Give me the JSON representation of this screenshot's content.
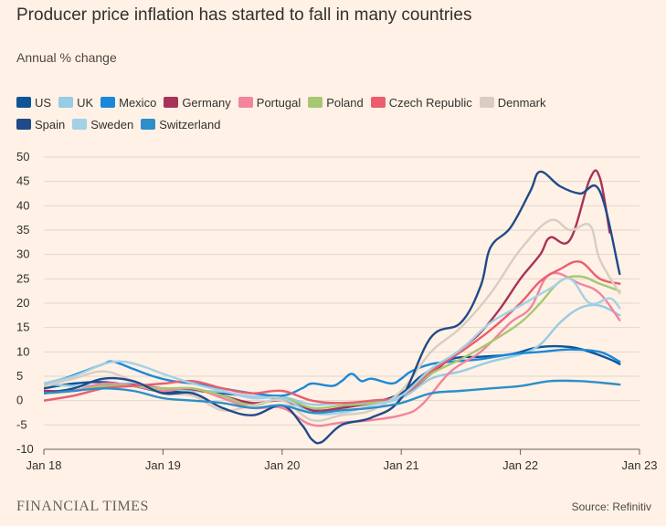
{
  "header": {
    "title": "Producer price inflation has started to fall in many countries",
    "subtitle": "Annual % change"
  },
  "footer": {
    "brand": "FINANCIAL TIMES",
    "source": "Source: Refinitiv"
  },
  "colors": {
    "background": "#fff1e5",
    "grid": "#e0d6cc",
    "axis": "#66605c",
    "text": "#33302e"
  },
  "chart_data": {
    "type": "line",
    "title": "Producer price inflation has started to fall in many countries",
    "ylabel": "Annual % change",
    "xlabel": "",
    "ylim": [
      -10,
      50
    ],
    "yticks": [
      "50",
      "45",
      "40",
      "35",
      "30",
      "25",
      "20",
      "15",
      "10",
      "5",
      "0",
      "-5",
      "-10"
    ],
    "xlim": [
      "2018-01",
      "2023-01"
    ],
    "xticks": [
      "Jan 18",
      "Jan 19",
      "Jan 20",
      "Jan 21",
      "Jan 22",
      "Jan 23"
    ],
    "grid": true,
    "legend_position": "top-left",
    "series": [
      {
        "name": "US",
        "color": "#0f5499",
        "points": [
          [
            "2018-01",
            2.5
          ],
          [
            "2018-04",
            3.5
          ],
          [
            "2018-07",
            3.8
          ],
          [
            "2018-10",
            3.0
          ],
          [
            "2019-01",
            1.8
          ],
          [
            "2019-04",
            2.0
          ],
          [
            "2019-07",
            1.5
          ],
          [
            "2019-10",
            0.8
          ],
          [
            "2020-01",
            0.5
          ],
          [
            "2020-03",
            -1.0
          ],
          [
            "2020-04",
            -2.0
          ],
          [
            "2020-05",
            -2.5
          ],
          [
            "2020-07",
            -1.5
          ],
          [
            "2020-10",
            -0.5
          ],
          [
            "2021-01",
            1.5
          ],
          [
            "2021-03",
            5.0
          ],
          [
            "2021-06",
            8.5
          ],
          [
            "2021-09",
            9.0
          ],
          [
            "2021-12",
            9.5
          ],
          [
            "2022-03",
            11.0
          ],
          [
            "2022-06",
            11.0
          ],
          [
            "2022-08",
            10.0
          ],
          [
            "2022-10",
            8.5
          ],
          [
            "2022-11",
            7.5
          ]
        ]
      },
      {
        "name": "UK",
        "color": "#96cce4",
        "points": [
          [
            "2018-01",
            3.5
          ],
          [
            "2018-04",
            3.0
          ],
          [
            "2018-07",
            3.2
          ],
          [
            "2018-10",
            3.5
          ],
          [
            "2019-01",
            2.5
          ],
          [
            "2019-04",
            2.0
          ],
          [
            "2019-07",
            1.8
          ],
          [
            "2019-10",
            0.8
          ],
          [
            "2020-01",
            0.8
          ],
          [
            "2020-04",
            -0.8
          ],
          [
            "2020-07",
            -0.5
          ],
          [
            "2020-10",
            -0.5
          ],
          [
            "2021-01",
            0.5
          ],
          [
            "2021-04",
            4.5
          ],
          [
            "2021-07",
            6.0
          ],
          [
            "2021-10",
            8.0
          ],
          [
            "2022-01",
            9.5
          ],
          [
            "2022-03",
            11.5
          ],
          [
            "2022-05",
            16.0
          ],
          [
            "2022-07",
            19.0
          ],
          [
            "2022-09",
            19.5
          ],
          [
            "2022-11",
            17.5
          ]
        ]
      },
      {
        "name": "Mexico",
        "color": "#1a88d8",
        "points": [
          [
            "2018-01",
            3.5
          ],
          [
            "2018-03",
            4.5
          ],
          [
            "2018-05",
            6.0
          ],
          [
            "2018-07",
            7.5
          ],
          [
            "2018-08",
            8.0
          ],
          [
            "2018-10",
            6.5
          ],
          [
            "2018-12",
            5.0
          ],
          [
            "2019-02",
            4.0
          ],
          [
            "2019-04",
            3.5
          ],
          [
            "2019-07",
            2.5
          ],
          [
            "2019-10",
            1.5
          ],
          [
            "2020-01",
            1.0
          ],
          [
            "2020-03",
            2.5
          ],
          [
            "2020-04",
            3.5
          ],
          [
            "2020-06",
            3.0
          ],
          [
            "2020-07",
            4.0
          ],
          [
            "2020-08",
            5.5
          ],
          [
            "2020-09",
            4.0
          ],
          [
            "2020-10",
            4.5
          ],
          [
            "2020-12",
            3.5
          ],
          [
            "2021-01",
            4.5
          ],
          [
            "2021-02",
            6.0
          ],
          [
            "2021-04",
            7.5
          ],
          [
            "2021-06",
            8.0
          ],
          [
            "2021-09",
            8.5
          ],
          [
            "2021-12",
            9.5
          ],
          [
            "2022-03",
            10.0
          ],
          [
            "2022-06",
            10.5
          ],
          [
            "2022-09",
            10.0
          ],
          [
            "2022-11",
            8.0
          ]
        ]
      },
      {
        "name": "Germany",
        "color": "#a8325a",
        "points": [
          [
            "2018-01",
            2.0
          ],
          [
            "2018-04",
            2.0
          ],
          [
            "2018-07",
            3.0
          ],
          [
            "2018-10",
            3.2
          ],
          [
            "2019-01",
            2.5
          ],
          [
            "2019-04",
            2.3
          ],
          [
            "2019-07",
            1.0
          ],
          [
            "2019-10",
            -0.5
          ],
          [
            "2020-01",
            0.0
          ],
          [
            "2020-04",
            -2.0
          ],
          [
            "2020-07",
            -1.5
          ],
          [
            "2020-10",
            -0.5
          ],
          [
            "2021-01",
            1.0
          ],
          [
            "2021-04",
            5.5
          ],
          [
            "2021-07",
            10.5
          ],
          [
            "2021-09",
            14.0
          ],
          [
            "2021-11",
            19.0
          ],
          [
            "2022-01",
            25.0
          ],
          [
            "2022-03",
            30.0
          ],
          [
            "2022-04",
            33.5
          ],
          [
            "2022-06",
            33.0
          ],
          [
            "2022-08",
            45.5
          ],
          [
            "2022-09",
            45.8
          ],
          [
            "2022-10",
            34.5
          ]
        ]
      },
      {
        "name": "Portugal",
        "color": "#f2849e",
        "points": [
          [
            "2018-01",
            1.5
          ],
          [
            "2018-04",
            2.0
          ],
          [
            "2018-07",
            3.5
          ],
          [
            "2018-10",
            3.0
          ],
          [
            "2019-01",
            2.0
          ],
          [
            "2019-04",
            2.5
          ],
          [
            "2019-07",
            0.5
          ],
          [
            "2019-10",
            -1.5
          ],
          [
            "2020-01",
            -1.5
          ],
          [
            "2020-04",
            -5.0
          ],
          [
            "2020-07",
            -4.5
          ],
          [
            "2020-10",
            -4.0
          ],
          [
            "2021-01",
            -3.0
          ],
          [
            "2021-03",
            -1.0
          ],
          [
            "2021-06",
            6.0
          ],
          [
            "2021-09",
            10.0
          ],
          [
            "2021-12",
            16.0
          ],
          [
            "2022-02",
            19.0
          ],
          [
            "2022-04",
            26.0
          ],
          [
            "2022-07",
            24.0
          ],
          [
            "2022-09",
            22.0
          ],
          [
            "2022-11",
            16.5
          ]
        ]
      },
      {
        "name": "Poland",
        "color": "#a7c773",
        "points": [
          [
            "2018-01",
            1.5
          ],
          [
            "2018-04",
            2.0
          ],
          [
            "2018-07",
            3.0
          ],
          [
            "2018-10",
            3.0
          ],
          [
            "2019-01",
            2.5
          ],
          [
            "2019-04",
            2.5
          ],
          [
            "2019-07",
            1.0
          ],
          [
            "2019-10",
            -1.0
          ],
          [
            "2020-01",
            0.5
          ],
          [
            "2020-04",
            -1.5
          ],
          [
            "2020-07",
            -1.0
          ],
          [
            "2020-10",
            -0.5
          ],
          [
            "2021-01",
            1.0
          ],
          [
            "2021-04",
            5.5
          ],
          [
            "2021-07",
            8.5
          ],
          [
            "2021-10",
            12.0
          ],
          [
            "2022-01",
            16.0
          ],
          [
            "2022-03",
            20.0
          ],
          [
            "2022-05",
            24.5
          ],
          [
            "2022-07",
            25.5
          ],
          [
            "2022-09",
            24.0
          ],
          [
            "2022-11",
            22.5
          ]
        ]
      },
      {
        "name": "Czech Republic",
        "color": "#eb5e6e",
        "points": [
          [
            "2018-01",
            0.0
          ],
          [
            "2018-04",
            1.0
          ],
          [
            "2018-07",
            2.5
          ],
          [
            "2018-10",
            3.0
          ],
          [
            "2019-01",
            3.5
          ],
          [
            "2019-04",
            4.0
          ],
          [
            "2019-07",
            2.5
          ],
          [
            "2019-10",
            1.5
          ],
          [
            "2020-01",
            2.0
          ],
          [
            "2020-04",
            0.0
          ],
          [
            "2020-07",
            -0.5
          ],
          [
            "2020-10",
            0.0
          ],
          [
            "2021-01",
            1.0
          ],
          [
            "2021-04",
            6.0
          ],
          [
            "2021-07",
            10.0
          ],
          [
            "2021-10",
            14.5
          ],
          [
            "2022-01",
            20.0
          ],
          [
            "2022-03",
            24.5
          ],
          [
            "2022-05",
            27.0
          ],
          [
            "2022-07",
            28.5
          ],
          [
            "2022-09",
            25.0
          ],
          [
            "2022-11",
            24.0
          ]
        ]
      },
      {
        "name": "Denmark",
        "color": "#d9ccc1",
        "points": [
          [
            "2018-01",
            3.0
          ],
          [
            "2018-04",
            4.5
          ],
          [
            "2018-07",
            6.0
          ],
          [
            "2018-10",
            4.0
          ],
          [
            "2019-01",
            1.5
          ],
          [
            "2019-04",
            1.0
          ],
          [
            "2019-07",
            -2.0
          ],
          [
            "2019-10",
            -1.0
          ],
          [
            "2020-01",
            0.0
          ],
          [
            "2020-04",
            -4.0
          ],
          [
            "2020-07",
            -3.0
          ],
          [
            "2020-10",
            -2.0
          ],
          [
            "2021-01",
            2.0
          ],
          [
            "2021-04",
            10.0
          ],
          [
            "2021-07",
            15.0
          ],
          [
            "2021-10",
            22.0
          ],
          [
            "2022-01",
            31.0
          ],
          [
            "2022-04",
            37.0
          ],
          [
            "2022-06",
            35.0
          ],
          [
            "2022-08",
            36.0
          ],
          [
            "2022-09",
            29.0
          ],
          [
            "2022-11",
            22.0
          ]
        ]
      },
      {
        "name": "Spain",
        "color": "#204a8a",
        "points": [
          [
            "2018-01",
            1.5
          ],
          [
            "2018-04",
            2.5
          ],
          [
            "2018-07",
            4.5
          ],
          [
            "2018-10",
            4.0
          ],
          [
            "2019-01",
            1.5
          ],
          [
            "2019-04",
            1.5
          ],
          [
            "2019-07",
            -1.5
          ],
          [
            "2019-10",
            -3.0
          ],
          [
            "2020-01",
            -1.0
          ],
          [
            "2020-03",
            -5.0
          ],
          [
            "2020-04",
            -8.0
          ],
          [
            "2020-05",
            -8.5
          ],
          [
            "2020-07",
            -5.0
          ],
          [
            "2020-10",
            -3.5
          ],
          [
            "2021-01",
            0.5
          ],
          [
            "2021-04",
            13.0
          ],
          [
            "2021-07",
            16.0
          ],
          [
            "2021-09",
            23.5
          ],
          [
            "2021-10",
            31.5
          ],
          [
            "2021-12",
            35.5
          ],
          [
            "2022-02",
            43.0
          ],
          [
            "2022-03",
            47.0
          ],
          [
            "2022-05",
            44.0
          ],
          [
            "2022-07",
            42.5
          ],
          [
            "2022-09",
            43.0
          ],
          [
            "2022-11",
            26.0
          ]
        ]
      },
      {
        "name": "Sweden",
        "color": "#a3d1e6",
        "points": [
          [
            "2018-01",
            3.5
          ],
          [
            "2018-04",
            5.0
          ],
          [
            "2018-07",
            7.5
          ],
          [
            "2018-09",
            8.0
          ],
          [
            "2018-11",
            7.0
          ],
          [
            "2019-01",
            5.5
          ],
          [
            "2019-04",
            3.5
          ],
          [
            "2019-07",
            2.0
          ],
          [
            "2019-10",
            0.5
          ],
          [
            "2020-01",
            0.5
          ],
          [
            "2020-04",
            -2.5
          ],
          [
            "2020-07",
            -2.5
          ],
          [
            "2020-10",
            -1.0
          ],
          [
            "2021-01",
            1.0
          ],
          [
            "2021-04",
            6.5
          ],
          [
            "2021-07",
            10.5
          ],
          [
            "2021-10",
            16.0
          ],
          [
            "2022-01",
            19.5
          ],
          [
            "2022-04",
            23.0
          ],
          [
            "2022-06",
            25.0
          ],
          [
            "2022-08",
            20.0
          ],
          [
            "2022-10",
            21.0
          ],
          [
            "2022-11",
            19.0
          ]
        ]
      },
      {
        "name": "Switzerland",
        "color": "#2d8ec9",
        "points": [
          [
            "2018-01",
            1.5
          ],
          [
            "2018-04",
            2.0
          ],
          [
            "2018-07",
            2.5
          ],
          [
            "2018-10",
            2.0
          ],
          [
            "2019-01",
            0.5
          ],
          [
            "2019-04",
            0.0
          ],
          [
            "2019-07",
            -0.5
          ],
          [
            "2019-10",
            -1.5
          ],
          [
            "2020-01",
            -1.0
          ],
          [
            "2020-04",
            -2.5
          ],
          [
            "2020-07",
            -2.0
          ],
          [
            "2020-10",
            -1.5
          ],
          [
            "2021-01",
            -0.5
          ],
          [
            "2021-04",
            1.5
          ],
          [
            "2021-07",
            2.0
          ],
          [
            "2021-10",
            2.5
          ],
          [
            "2022-01",
            3.0
          ],
          [
            "2022-04",
            4.0
          ],
          [
            "2022-07",
            4.0
          ],
          [
            "2022-10",
            3.5
          ],
          [
            "2022-11",
            3.3
          ]
        ]
      }
    ]
  }
}
